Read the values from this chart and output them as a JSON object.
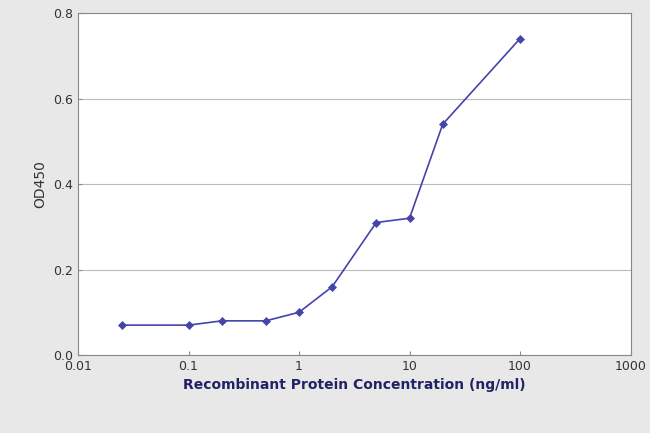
{
  "x": [
    0.025,
    0.1,
    0.2,
    0.5,
    1.0,
    2.0,
    5.0,
    10.0,
    20.0,
    100.0
  ],
  "y": [
    0.07,
    0.07,
    0.08,
    0.08,
    0.1,
    0.16,
    0.31,
    0.32,
    0.54,
    0.74
  ],
  "line_color": "#4444aa",
  "marker": "D",
  "marker_size": 4,
  "marker_color": "#4444aa",
  "xlabel": "Recombinant Protein Concentration (ng/ml)",
  "ylabel": "OD450",
  "xlim_log": [
    0.01,
    1000
  ],
  "ylim": [
    0.0,
    0.8
  ],
  "yticks": [
    0.0,
    0.2,
    0.4,
    0.6,
    0.8
  ],
  "xticks": [
    0.01,
    0.1,
    1,
    10,
    100,
    1000
  ],
  "xtick_labels": [
    "0.01",
    "0.1",
    "1",
    "10",
    "100",
    "1000"
  ],
  "grid_color": "#bbbbbb",
  "figure_background": "#e8e8e8",
  "plot_background": "#ffffff",
  "xlabel_fontsize": 10,
  "ylabel_fontsize": 10,
  "tick_fontsize": 9,
  "line_width": 1.2,
  "spine_color": "#888888"
}
